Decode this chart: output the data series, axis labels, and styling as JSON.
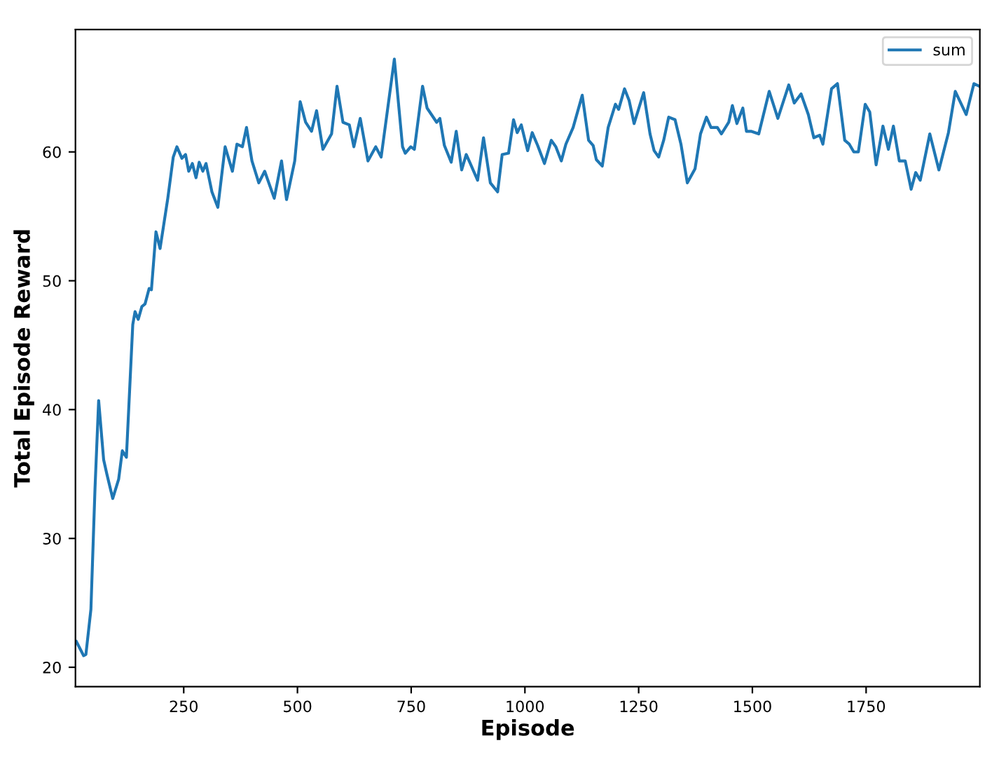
{
  "chart_data": {
    "type": "line",
    "xlabel": "Episode",
    "ylabel": "Total Episode Reward",
    "xlim": [
      12,
      2000
    ],
    "ylim": [
      18.5,
      69.5
    ],
    "xticks": [
      250,
      500,
      750,
      1000,
      1250,
      1500,
      1750
    ],
    "yticks": [
      20,
      30,
      40,
      50,
      60
    ],
    "grid": false,
    "legend": "top right",
    "marker": "none",
    "line_style": "solid",
    "series": [
      {
        "name": "sum",
        "color": "#1f77b4",
        "x": [
          14,
          30,
          35,
          46,
          55,
          63,
          74,
          81,
          94,
          107,
          115,
          124,
          138,
          143,
          150,
          158,
          165,
          174,
          179,
          189,
          198,
          215,
          227,
          235,
          246,
          254,
          261,
          269,
          277,
          284,
          292,
          299,
          312,
          325,
          341,
          357,
          367,
          379,
          388,
          400,
          415,
          428,
          449,
          465,
          476,
          494,
          506,
          518,
          531,
          542,
          556,
          575,
          587,
          600,
          614,
          624,
          638,
          655,
          672,
          684,
          713,
          731,
          737,
          749,
          757,
          775,
          785,
          806,
          813,
          823,
          838,
          849,
          861,
          871,
          880,
          896,
          909,
          924,
          940,
          950,
          964,
          975,
          983,
          992,
          1006,
          1016,
          1028,
          1043,
          1058,
          1068,
          1080,
          1090,
          1106,
          1126,
          1140,
          1150,
          1157,
          1170,
          1183,
          1199,
          1206,
          1219,
          1229,
          1240,
          1261,
          1275,
          1284,
          1294,
          1305,
          1316,
          1330,
          1343,
          1357,
          1374,
          1386,
          1399,
          1409,
          1423,
          1432,
          1448,
          1456,
          1466,
          1479,
          1487,
          1497,
          1514,
          1537,
          1556,
          1580,
          1592,
          1607,
          1623,
          1635,
          1648,
          1655,
          1674,
          1687,
          1703,
          1713,
          1723,
          1733,
          1748,
          1758,
          1772,
          1787,
          1799,
          1810,
          1823,
          1836,
          1849,
          1859,
          1869,
          1890,
          1910,
          1931,
          1946,
          1970,
          1987,
          1999
        ],
        "values": [
          22.0,
          20.9,
          21.0,
          24.5,
          33.9,
          40.7,
          36.1,
          35.0,
          33.1,
          34.6,
          36.8,
          36.3,
          46.6,
          47.6,
          47.0,
          48.0,
          48.2,
          49.4,
          49.3,
          53.8,
          52.5,
          56.4,
          59.6,
          60.4,
          59.5,
          59.8,
          58.5,
          59.1,
          58.0,
          59.2,
          58.5,
          59.1,
          56.9,
          55.7,
          60.4,
          58.5,
          60.6,
          60.4,
          61.9,
          59.3,
          57.6,
          58.5,
          56.4,
          59.3,
          56.3,
          59.3,
          63.9,
          62.3,
          61.6,
          63.2,
          60.2,
          61.4,
          65.1,
          62.3,
          62.1,
          60.4,
          62.6,
          59.3,
          60.4,
          59.6,
          67.2,
          60.4,
          59.9,
          60.4,
          60.2,
          65.1,
          63.4,
          62.3,
          62.6,
          60.5,
          59.2,
          61.6,
          58.6,
          59.8,
          59.1,
          57.8,
          61.1,
          57.6,
          56.9,
          59.8,
          59.9,
          62.5,
          61.5,
          62.1,
          60.1,
          61.5,
          60.5,
          59.1,
          60.9,
          60.4,
          59.3,
          60.6,
          61.9,
          64.4,
          60.9,
          60.5,
          59.4,
          58.9,
          61.9,
          63.7,
          63.3,
          64.9,
          64.0,
          62.2,
          64.6,
          61.4,
          60.1,
          59.6,
          60.9,
          62.7,
          62.5,
          60.6,
          57.6,
          58.7,
          61.4,
          62.7,
          61.9,
          61.9,
          61.4,
          62.3,
          63.6,
          62.2,
          63.4,
          61.6,
          61.6,
          61.4,
          64.7,
          62.6,
          65.2,
          63.8,
          64.5,
          62.9,
          61.1,
          61.3,
          60.6,
          64.9,
          65.3,
          60.9,
          60.6,
          60.0,
          60.0,
          63.7,
          63.1,
          59.0,
          62.0,
          60.2,
          62.0,
          59.3,
          59.3,
          57.1,
          58.4,
          57.8,
          61.4,
          58.6,
          61.5,
          64.7,
          62.9,
          65.3,
          65.1
        ]
      }
    ]
  }
}
